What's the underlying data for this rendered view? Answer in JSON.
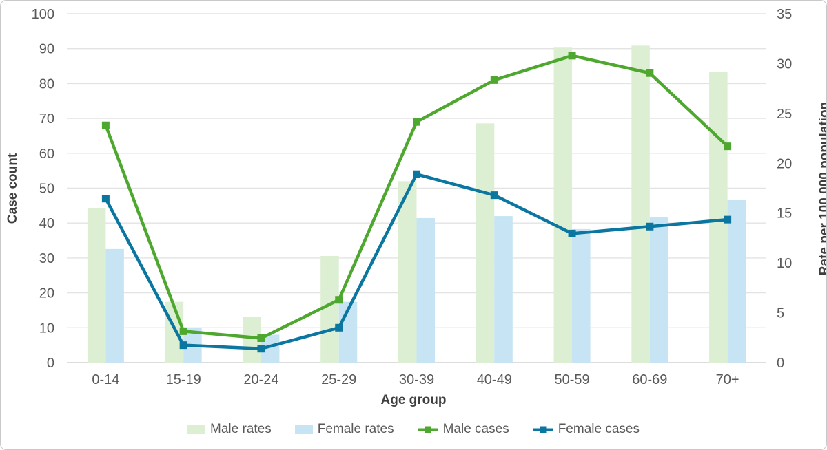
{
  "chart_data": {
    "type": "combo-bar-line",
    "title": "",
    "xlabel": "Age group",
    "categories": [
      "0-14",
      "15-19",
      "20-24",
      "25-29",
      "30-39",
      "40-49",
      "50-59",
      "60-69",
      "70+"
    ],
    "left_axis": {
      "label": "Case count",
      "min": 0,
      "max": 100,
      "step": 10
    },
    "right_axis": {
      "label": "Rate per 100,000 population",
      "min": 0,
      "max": 35,
      "step": 5
    },
    "series": [
      {
        "name": "Male rates",
        "type": "bar",
        "axis": "right",
        "color": "#dcefd3",
        "values": [
          15.5,
          6.1,
          4.6,
          10.7,
          18.2,
          24.0,
          31.6,
          31.8,
          29.2
        ]
      },
      {
        "name": "Female rates",
        "type": "bar",
        "axis": "right",
        "color": "#c6e4f4",
        "values": [
          11.4,
          3.5,
          2.8,
          6.1,
          14.5,
          14.7,
          13.4,
          14.6,
          16.3
        ]
      },
      {
        "name": "Male cases",
        "type": "line",
        "axis": "left",
        "color": "#4ea72e",
        "values": [
          68,
          9,
          7,
          18,
          69,
          81,
          88,
          83,
          62
        ]
      },
      {
        "name": "Female cases",
        "type": "line",
        "axis": "left",
        "color": "#0b76a0",
        "values": [
          47,
          5,
          4,
          10,
          54,
          48,
          37,
          39,
          41
        ]
      }
    ],
    "grid": true,
    "legend_position": "bottom"
  },
  "style_colors": {
    "tick_label": "#595959",
    "axis_title": "#3f3f3f",
    "gridline": "#e3e3e3",
    "axis_line": "#d2d2d2",
    "border": "#c9c9c9",
    "background": "#ffffff"
  }
}
